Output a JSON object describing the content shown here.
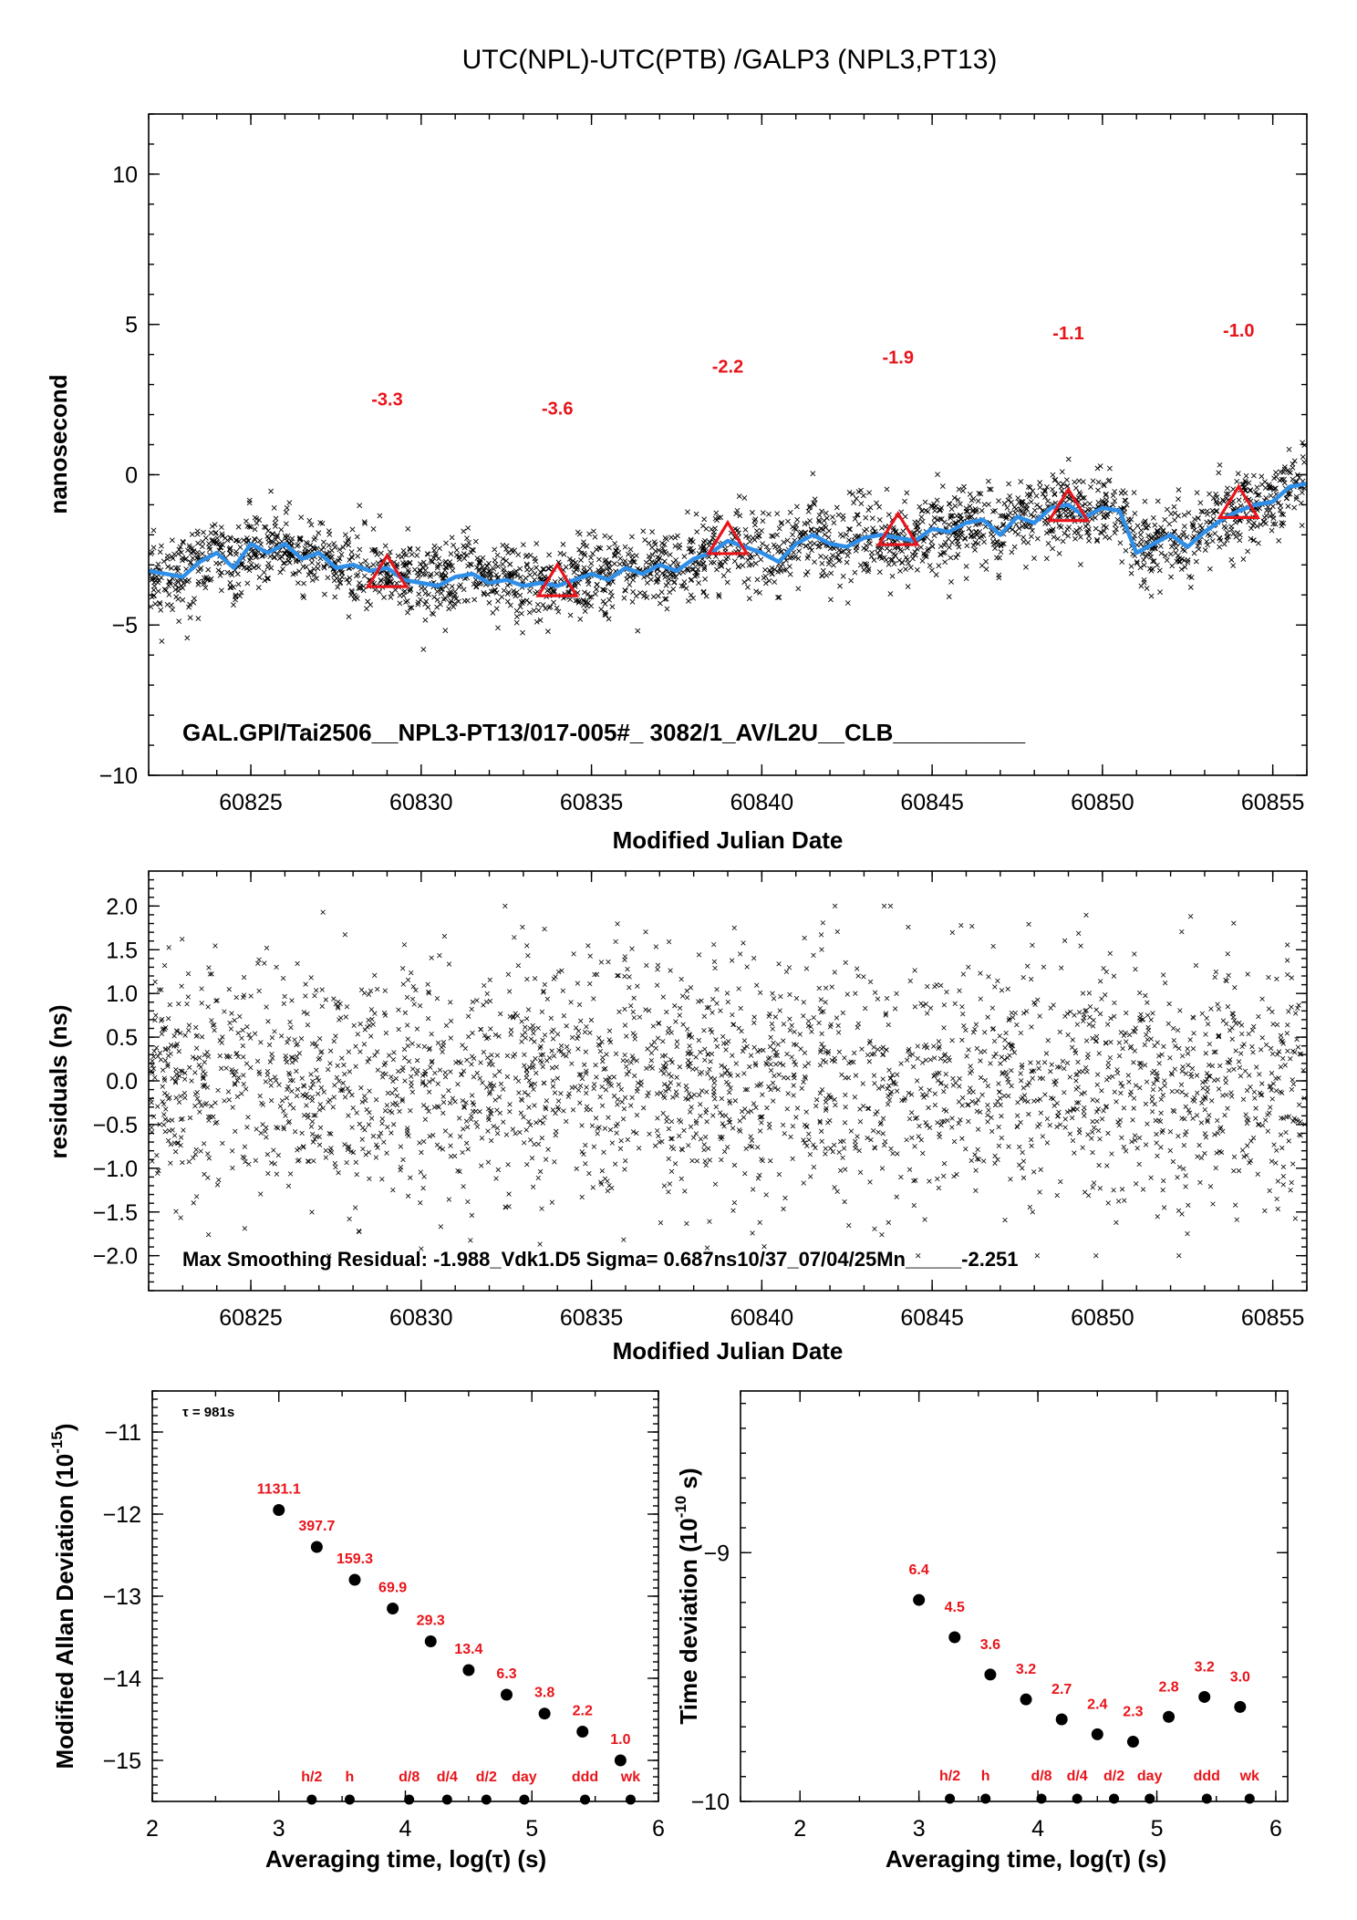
{
  "title": "UTC(NPL)-UTC(PTB)  /GALP3  (NPL3,PT13)",
  "colors": {
    "smooth_line": "#2f8fe8",
    "marker_red": "#e8141a",
    "scatter": "#000000"
  },
  "chart_data": [
    {
      "type": "scatter",
      "panel": "top",
      "xlabel": "Modified Julian Date",
      "ylabel": "nanosecond",
      "xlim": [
        60822,
        60856
      ],
      "ylim": [
        -10,
        12
      ],
      "xticks": [
        60825,
        60830,
        60835,
        60840,
        60845,
        60850,
        60855
      ],
      "yticks": [
        -10,
        -5,
        0,
        5,
        10
      ],
      "ytick_labels": [
        "−10",
        "−5",
        "0",
        "5",
        "10"
      ],
      "annotation": "GAL.GPI/Tai2506__NPL3-PT13/017-005#_  3082/1_AV/L2U__CLB__________",
      "smooth_curve": {
        "x": [
          60822,
          60822.5,
          60823,
          60823.5,
          60824,
          60824.5,
          60825,
          60825.5,
          60826,
          60826.5,
          60827,
          60827.5,
          60828,
          60828.5,
          60829,
          60829.5,
          60830,
          60830.5,
          60831,
          60831.5,
          60832,
          60832.5,
          60833,
          60833.5,
          60834,
          60834.5,
          60835,
          60835.5,
          60836,
          60836.5,
          60837,
          60837.5,
          60838,
          60838.5,
          60839,
          60839.5,
          60840,
          60840.5,
          60841,
          60841.5,
          60842,
          60842.5,
          60843,
          60843.5,
          60844,
          60844.5,
          60845,
          60845.5,
          60846,
          60846.5,
          60847,
          60847.5,
          60848,
          60848.5,
          60849,
          60849.5,
          60850,
          60850.5,
          60851,
          60851.5,
          60852,
          60852.5,
          60853,
          60853.5,
          60854,
          60854.5,
          60855,
          60855.5,
          60856
        ],
        "y": [
          -3.2,
          -3.3,
          -3.4,
          -2.9,
          -2.6,
          -3.1,
          -2.3,
          -2.6,
          -2.3,
          -2.8,
          -2.6,
          -3.1,
          -3.0,
          -3.2,
          -3.1,
          -3.5,
          -3.6,
          -3.7,
          -3.4,
          -3.3,
          -3.6,
          -3.5,
          -3.7,
          -3.6,
          -3.7,
          -3.5,
          -3.3,
          -3.5,
          -3.1,
          -3.3,
          -3.0,
          -3.2,
          -2.8,
          -2.6,
          -2.2,
          -2.4,
          -2.6,
          -2.9,
          -2.3,
          -2.0,
          -2.3,
          -2.4,
          -2.1,
          -2.0,
          -2.1,
          -2.2,
          -1.8,
          -1.9,
          -1.6,
          -1.5,
          -2.0,
          -1.4,
          -1.6,
          -1.1,
          -1.0,
          -1.4,
          -1.1,
          -1.2,
          -2.6,
          -2.3,
          -2.0,
          -2.4,
          -1.9,
          -1.5,
          -1.2,
          -1.0,
          -0.9,
          -0.4,
          -0.3
        ]
      },
      "triangles": [
        {
          "x": 60829,
          "y": -3.3,
          "label": "-3.3"
        },
        {
          "x": 60834,
          "y": -3.6,
          "label": "-3.6"
        },
        {
          "x": 60839,
          "y": -2.2,
          "label": "-2.2"
        },
        {
          "x": 60844,
          "y": -1.9,
          "label": "-1.9"
        },
        {
          "x": 60849,
          "y": -1.1,
          "label": "-1.1"
        },
        {
          "x": 60854,
          "y": -1.0,
          "label": "-1.0"
        }
      ]
    },
    {
      "type": "scatter",
      "panel": "middle",
      "xlabel": "Modified Julian Date",
      "ylabel": "residuals (ns)",
      "xlim": [
        60822,
        60856
      ],
      "ylim": [
        -2.4,
        2.4
      ],
      "xticks": [
        60825,
        60830,
        60835,
        60840,
        60845,
        60850,
        60855
      ],
      "yticks": [
        -2.0,
        -1.5,
        -1.0,
        -0.5,
        0.0,
        0.5,
        1.0,
        1.5,
        2.0
      ],
      "ytick_labels": [
        "−2.0",
        "−1.5",
        "−1.0",
        "−0.5",
        "0.0",
        "0.5",
        "1.0",
        "1.5",
        "2.0"
      ],
      "annotation": "Max Smoothing Residual: -1.988_Vdk1.D5  Sigma= 0.687ns10/37_07/04/25Mn_____-2.251"
    },
    {
      "type": "scatter",
      "panel": "bottom-left",
      "xlabel": "Averaging time, log(τ) (s)",
      "ylabel_main": "Modified Allan Deviation (10",
      "ylabel_sup": "-15",
      "ylabel_end": ")",
      "tau_note": "τ = 981s",
      "xlim": [
        2,
        6
      ],
      "ylim": [
        -15.5,
        -10.5
      ],
      "xticks": [
        2,
        3,
        4,
        5,
        6
      ],
      "yticks": [
        -15,
        -14,
        -13,
        -12,
        -11
      ],
      "ytick_labels": [
        "−15",
        "−14",
        "−13",
        "−12",
        "−11"
      ],
      "points": [
        {
          "x": 3.0,
          "y": -11.95,
          "label": "1131.1"
        },
        {
          "x": 3.3,
          "y": -12.4,
          "label": "397.7"
        },
        {
          "x": 3.6,
          "y": -12.8,
          "label": "159.3"
        },
        {
          "x": 3.9,
          "y": -13.15,
          "label": "69.9"
        },
        {
          "x": 4.2,
          "y": -13.55,
          "label": "29.3"
        },
        {
          "x": 4.5,
          "y": -13.9,
          "label": "13.4"
        },
        {
          "x": 4.8,
          "y": -14.2,
          "label": "6.3"
        },
        {
          "x": 5.1,
          "y": -14.43,
          "label": "3.8"
        },
        {
          "x": 5.4,
          "y": -14.65,
          "label": "2.2"
        },
        {
          "x": 5.7,
          "y": -15.0,
          "label": "1.0"
        }
      ],
      "baseline": [
        {
          "x": 3.26,
          "label": "h/2"
        },
        {
          "x": 3.56,
          "label": "h"
        },
        {
          "x": 4.03,
          "label": "d/8"
        },
        {
          "x": 4.33,
          "label": "d/4"
        },
        {
          "x": 4.64,
          "label": "d/2"
        },
        {
          "x": 4.94,
          "label": "day"
        },
        {
          "x": 5.42,
          "label": "ddd"
        },
        {
          "x": 5.78,
          "label": "wk"
        }
      ]
    },
    {
      "type": "scatter",
      "panel": "bottom-right",
      "xlabel": "Averaging time, log(τ) (s)",
      "ylabel_main": "Time deviation (10",
      "ylabel_sup": "-10",
      "ylabel_end": " s)",
      "xlim": [
        1.5,
        6.1
      ],
      "ylim": [
        -10,
        -8.35
      ],
      "xticks": [
        2,
        3,
        4,
        5,
        6
      ],
      "yticks": [
        -10,
        -9
      ],
      "ytick_labels": [
        "−10",
        "−9"
      ],
      "points": [
        {
          "x": 3.0,
          "y": -9.19,
          "label": "6.4"
        },
        {
          "x": 3.3,
          "y": -9.34,
          "label": "4.5"
        },
        {
          "x": 3.6,
          "y": -9.49,
          "label": "3.6"
        },
        {
          "x": 3.9,
          "y": -9.59,
          "label": "3.2"
        },
        {
          "x": 4.2,
          "y": -9.67,
          "label": "2.7"
        },
        {
          "x": 4.5,
          "y": -9.73,
          "label": "2.4"
        },
        {
          "x": 4.8,
          "y": -9.76,
          "label": "2.3"
        },
        {
          "x": 5.1,
          "y": -9.66,
          "label": "2.8"
        },
        {
          "x": 5.4,
          "y": -9.58,
          "label": "3.2"
        },
        {
          "x": 5.7,
          "y": -9.62,
          "label": "3.0"
        }
      ],
      "baseline": [
        {
          "x": 3.26,
          "label": "h/2"
        },
        {
          "x": 3.56,
          "label": "h"
        },
        {
          "x": 4.03,
          "label": "d/8"
        },
        {
          "x": 4.33,
          "label": "d/4"
        },
        {
          "x": 4.64,
          "label": "d/2"
        },
        {
          "x": 4.94,
          "label": "day"
        },
        {
          "x": 5.42,
          "label": "ddd"
        },
        {
          "x": 5.78,
          "label": "wk"
        }
      ]
    }
  ]
}
